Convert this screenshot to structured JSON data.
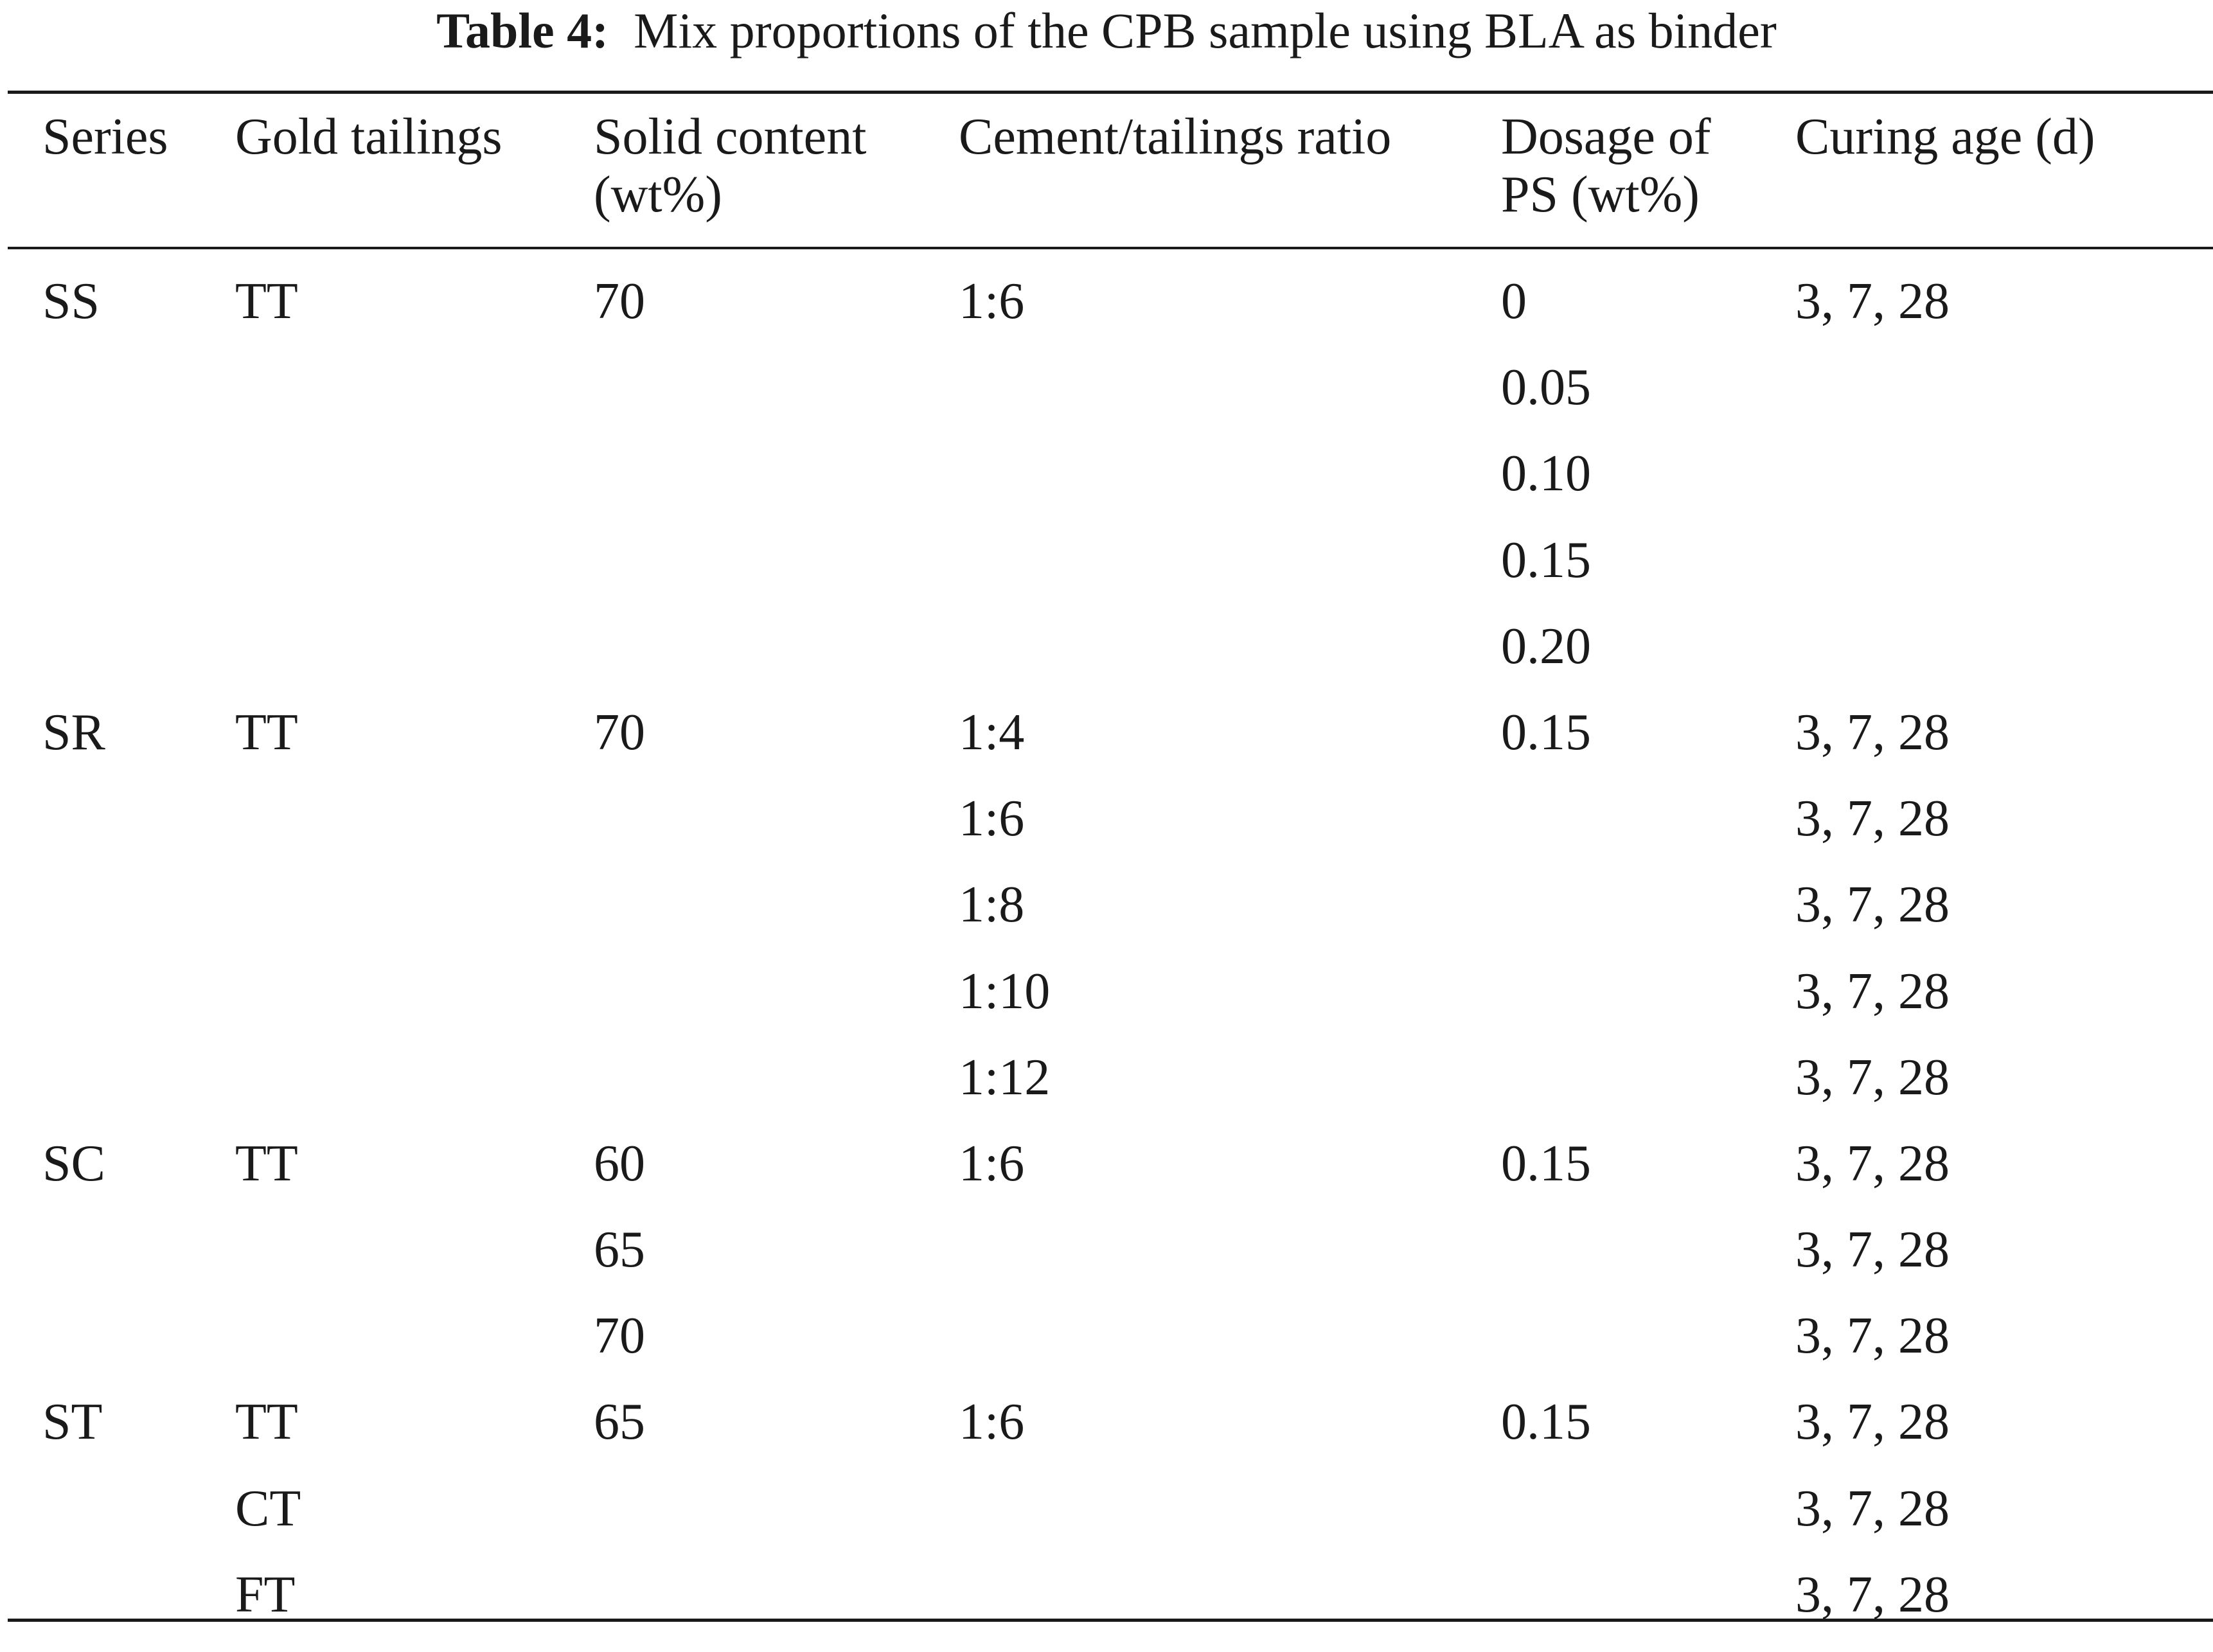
{
  "caption": {
    "label": "Table 4:",
    "text": "Mix proportions of the CPB sample using BLA as binder"
  },
  "columns": [
    "Series",
    "Gold tailings",
    "Solid content\n(wt%)",
    "Cement/tailings ratio",
    "Dosage of\nPS (wt%)",
    "Curing age (d)"
  ],
  "rows": [
    [
      "SS",
      "TT",
      "70",
      "1:6",
      "0",
      "3, 7, 28"
    ],
    [
      "",
      "",
      "",
      "",
      "0.05",
      ""
    ],
    [
      "",
      "",
      "",
      "",
      "0.10",
      ""
    ],
    [
      "",
      "",
      "",
      "",
      "0.15",
      ""
    ],
    [
      "",
      "",
      "",
      "",
      "0.20",
      ""
    ],
    [
      "SR",
      "TT",
      "70",
      "1:4",
      "0.15",
      "3, 7, 28"
    ],
    [
      "",
      "",
      "",
      "1:6",
      "",
      "3, 7, 28"
    ],
    [
      "",
      "",
      "",
      "1:8",
      "",
      "3, 7, 28"
    ],
    [
      "",
      "",
      "",
      "1:10",
      "",
      "3, 7, 28"
    ],
    [
      "",
      "",
      "",
      "1:12",
      "",
      "3, 7, 28"
    ],
    [
      "SC",
      "TT",
      "60",
      "1:6",
      "0.15",
      "3, 7, 28"
    ],
    [
      "",
      "",
      "65",
      "",
      "",
      "3, 7, 28"
    ],
    [
      "",
      "",
      "70",
      "",
      "",
      "3, 7, 28"
    ],
    [
      "ST",
      "TT",
      "65",
      "1:6",
      "0.15",
      "3, 7, 28"
    ],
    [
      "",
      "CT",
      "",
      "",
      "",
      "3, 7, 28"
    ],
    [
      "",
      "FT",
      "",
      "",
      "",
      "3, 7, 28"
    ]
  ]
}
